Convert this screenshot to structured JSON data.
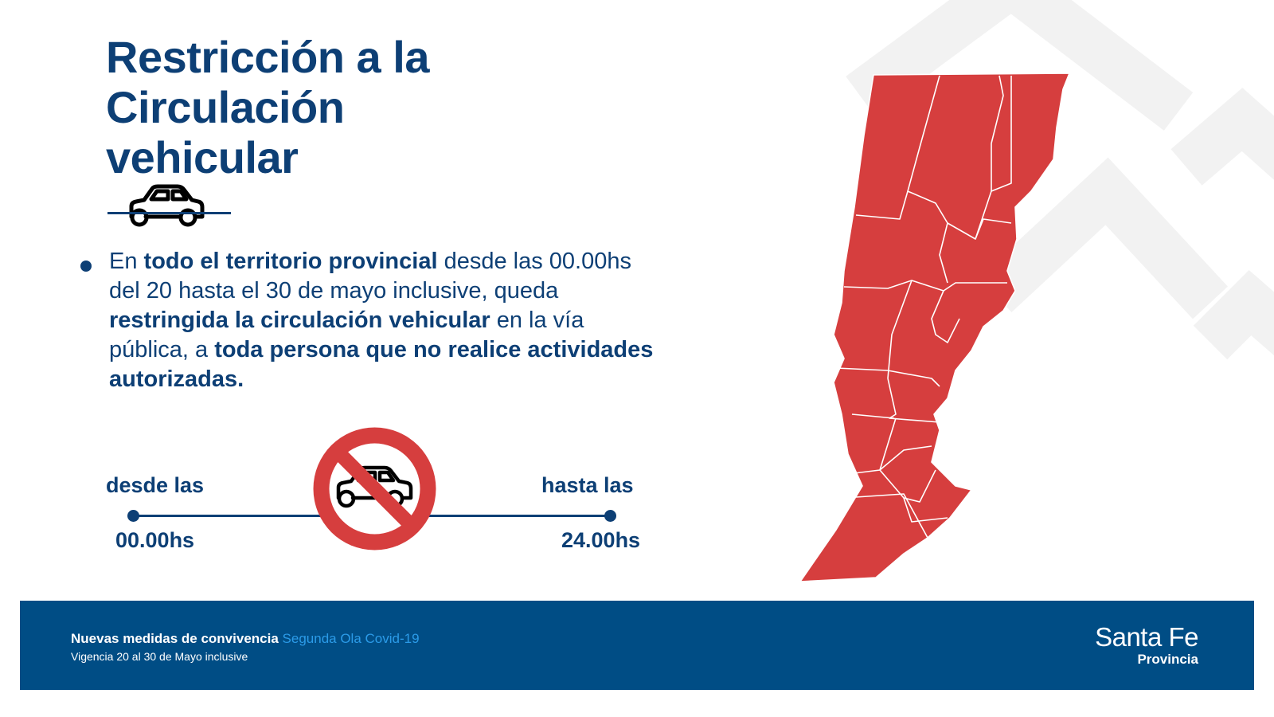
{
  "title": {
    "line1": "Restricción a la",
    "line2": "Circulación",
    "line3": "vehicular"
  },
  "bullet": {
    "t1": "En ",
    "b1": "todo el territorio provincial",
    "t2": " desde las 00.00hs del 20 hasta el 30 de mayo inclusive, queda ",
    "b2": "restringida la circulación vehicular",
    "t3": " en la vía pública, a ",
    "b3": "toda persona que no realice actividades autorizadas."
  },
  "timeline": {
    "from_label": "desde las",
    "from_time": "00.00hs",
    "to_label": "hasta las",
    "to_time": "24.00hs"
  },
  "map": {
    "fill_color": "#d63e3e",
    "border_color": "#ffffff"
  },
  "footer": {
    "title_bold": "Nuevas medidas de convivencia",
    "title_colored": "Segunda Ola Covid-19",
    "subtitle": "Vigencia 20 al 30 de Mayo inclusive",
    "brand_name": "Santa Fe",
    "brand_sub": "Provincia"
  },
  "colors": {
    "primary": "#0d3f75",
    "footer_bg": "#004d85",
    "accent_blue": "#2b9be8",
    "prohibition_red": "#d63e3e"
  },
  "icons": [
    "car-icon",
    "no-car-icon"
  ]
}
